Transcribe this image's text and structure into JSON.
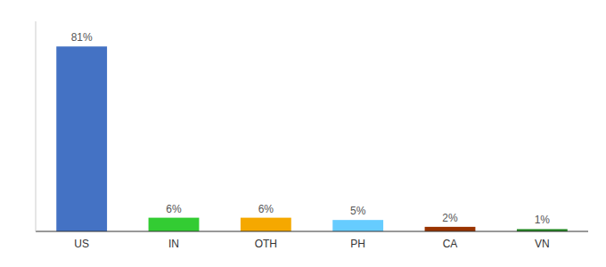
{
  "chart_data": {
    "type": "bar",
    "categories": [
      "US",
      "IN",
      "OTH",
      "PH",
      "CA",
      "VN"
    ],
    "values": [
      81,
      6,
      6,
      5,
      2,
      1
    ],
    "value_labels": [
      "81%",
      "6%",
      "6%",
      "5%",
      "2%",
      "1%"
    ],
    "colors": [
      "#4472c4",
      "#33cc33",
      "#f5a800",
      "#66ccff",
      "#993300",
      "#228822"
    ],
    "ylim": [
      0,
      92
    ],
    "data_labels": true,
    "tick_labels": "x",
    "grid": false
  }
}
